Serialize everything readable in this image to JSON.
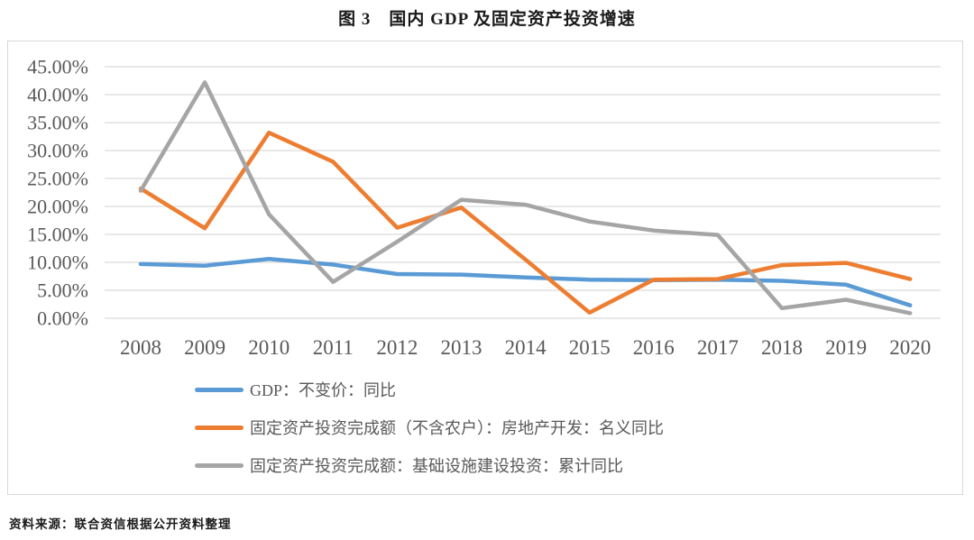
{
  "title": "图 3　国内 GDP 及固定资产投资增速",
  "source_note": "资料来源：联合资信根据公开资料整理",
  "colors": {
    "gdp_line": "#5B9BD5",
    "real_estate_line": "#ED7D31",
    "infrastructure_line": "#A5A5A5",
    "gridline": "#D9D9D9",
    "axis_label": "#595959",
    "plot_border": "#D9D9D9"
  },
  "chart_data": {
    "type": "line",
    "title": "图 3　国内 GDP 及固定资产投资增速",
    "x": [
      "2008",
      "2009",
      "2010",
      "2011",
      "2012",
      "2013",
      "2014",
      "2015",
      "2016",
      "2017",
      "2018",
      "2019",
      "2020"
    ],
    "series": [
      {
        "name": "GDP：不变价：同比",
        "color": "#5B9BD5",
        "values": [
          9.7,
          9.4,
          10.6,
          9.6,
          7.9,
          7.8,
          7.3,
          6.9,
          6.8,
          6.9,
          6.7,
          6.0,
          2.3
        ]
      },
      {
        "name": "固定资产投资完成额（不含农户）：房地产开发：名义同比",
        "color": "#ED7D31",
        "values": [
          23.2,
          16.1,
          33.2,
          28.0,
          16.2,
          19.8,
          10.5,
          1.0,
          6.9,
          7.0,
          9.5,
          9.9,
          7.0
        ]
      },
      {
        "name": "固定资产投资完成额：基础设施建设投资：累计同比",
        "color": "#A5A5A5",
        "values": [
          22.8,
          42.2,
          18.6,
          6.5,
          13.7,
          21.2,
          20.3,
          17.3,
          15.7,
          14.9,
          1.8,
          3.3,
          0.9
        ]
      }
    ],
    "ylim": [
      0,
      45
    ],
    "ytick_step": 5,
    "ytick_labels": [
      "0.00%",
      "5.00%",
      "10.00%",
      "15.00%",
      "20.00%",
      "25.00%",
      "30.00%",
      "35.00%",
      "40.00%",
      "45.00%"
    ],
    "grid": true,
    "legend_position": "bottom-left",
    "xlabel": "",
    "ylabel": ""
  }
}
